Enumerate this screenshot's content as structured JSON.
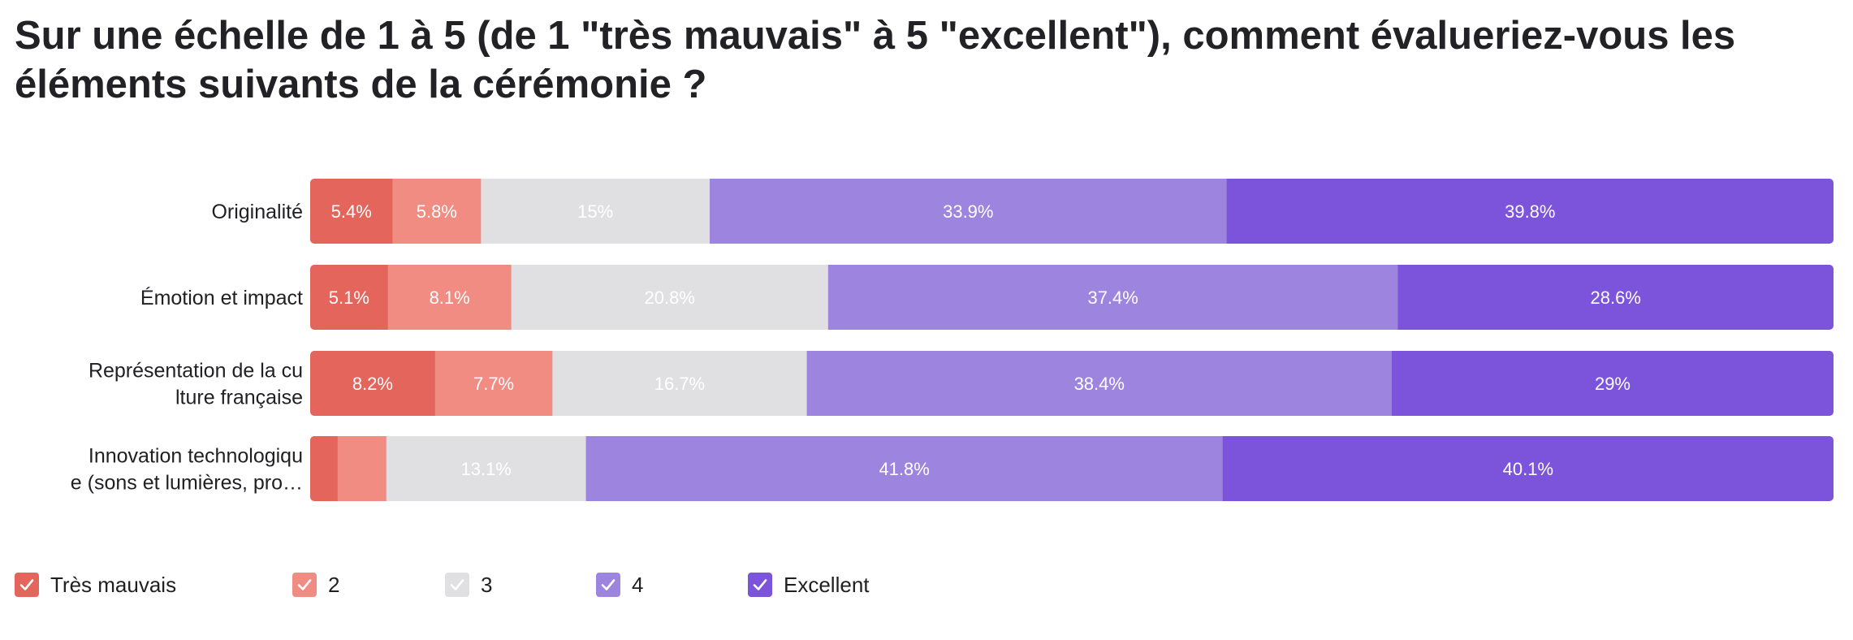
{
  "title": "Sur une échelle de 1 à 5 (de 1 \"très mauvais\" à 5 \"excellent\"), comment évalueriez-vous les éléments suivants de la cérémonie ?",
  "colors": {
    "Très mauvais": "#e3655b",
    "2": "#f08c82",
    "3": "#e0e0e3",
    "4": "#9d84de",
    "Excellent": "#7b54db"
  },
  "legend": [
    {
      "label": "Très mauvais",
      "icon": "check-icon"
    },
    {
      "label": "2",
      "icon": "check-icon"
    },
    {
      "label": "3",
      "icon": "check-icon"
    },
    {
      "label": "4",
      "icon": "check-icon"
    },
    {
      "label": "Excellent",
      "icon": "check-icon"
    }
  ],
  "chart_data": {
    "type": "bar",
    "orientation": "horizontal",
    "stacked": true,
    "normalized": true,
    "title": "Sur une échelle de 1 à 5 (de 1 \"très mauvais\" à 5 \"excellent\"), comment évalueriez-vous les éléments suivants de la cérémonie ?",
    "xlabel": "",
    "ylabel": "",
    "grid": false,
    "legend_position": "bottom-left",
    "categories": [
      "Originalité",
      "Émotion et impact",
      "Représentation de la culture française",
      "Innovation technologique (sons et lumières, projections...)"
    ],
    "category_display": [
      [
        "Originalité"
      ],
      [
        "Émotion et impact"
      ],
      [
        "Représentation de la cu",
        "lture française"
      ],
      [
        "Innovation technologiqu",
        "e (sons et lumières, pro…"
      ]
    ],
    "series": [
      {
        "name": "Très mauvais",
        "values": [
          5.4,
          5.1,
          8.2,
          1.8
        ],
        "labels": [
          "5.4%",
          "5.1%",
          "8.2%",
          ""
        ]
      },
      {
        "name": "2",
        "values": [
          5.8,
          8.1,
          7.7,
          3.2
        ],
        "labels": [
          "5.8%",
          "8.1%",
          "7.7%",
          ""
        ]
      },
      {
        "name": "3",
        "values": [
          15,
          20.8,
          16.7,
          13.1
        ],
        "labels": [
          "15%",
          "20.8%",
          "16.7%",
          "13.1%"
        ]
      },
      {
        "name": "4",
        "values": [
          33.9,
          37.4,
          38.4,
          41.8
        ],
        "labels": [
          "33.9%",
          "37.4%",
          "38.4%",
          "41.8%"
        ]
      },
      {
        "name": "Excellent",
        "values": [
          39.8,
          28.6,
          29,
          40.1
        ],
        "labels": [
          "39.8%",
          "28.6%",
          "29%",
          "40.1%"
        ]
      }
    ],
    "xlim": [
      0,
      100
    ]
  }
}
